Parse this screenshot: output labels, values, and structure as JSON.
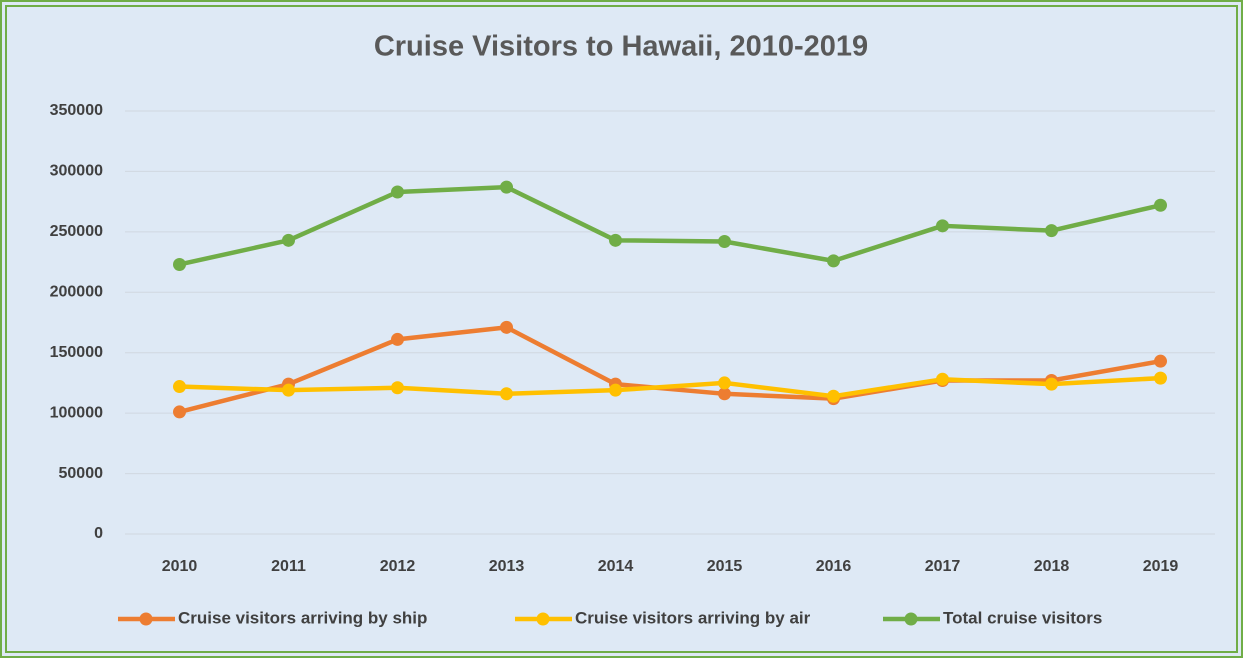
{
  "chart_data": {
    "type": "line",
    "title": "Cruise Visitors to Hawaii, 2010-2019",
    "categories": [
      "2010",
      "2011",
      "2012",
      "2013",
      "2014",
      "2015",
      "2016",
      "2017",
      "2018",
      "2019"
    ],
    "series": [
      {
        "name": "Cruise visitors arriving by ship",
        "color": "#ed7d31",
        "values": [
          101000,
          124000,
          161000,
          171000,
          124000,
          116000,
          112000,
          127000,
          127000,
          143000
        ]
      },
      {
        "name": "Cruise visitors arriving by air",
        "color": "#ffc000",
        "values": [
          122000,
          119000,
          121000,
          116000,
          119000,
          125000,
          114000,
          128000,
          124000,
          129000
        ]
      },
      {
        "name": "Total cruise visitors",
        "color": "#70ad47",
        "values": [
          223000,
          243000,
          283000,
          287000,
          243000,
          242000,
          226000,
          255000,
          251000,
          272000
        ]
      }
    ],
    "ylim": [
      0,
      350000
    ],
    "yticks": [
      0,
      50000,
      100000,
      150000,
      200000,
      250000,
      300000,
      350000
    ],
    "grid": true,
    "legend": "bottom"
  }
}
